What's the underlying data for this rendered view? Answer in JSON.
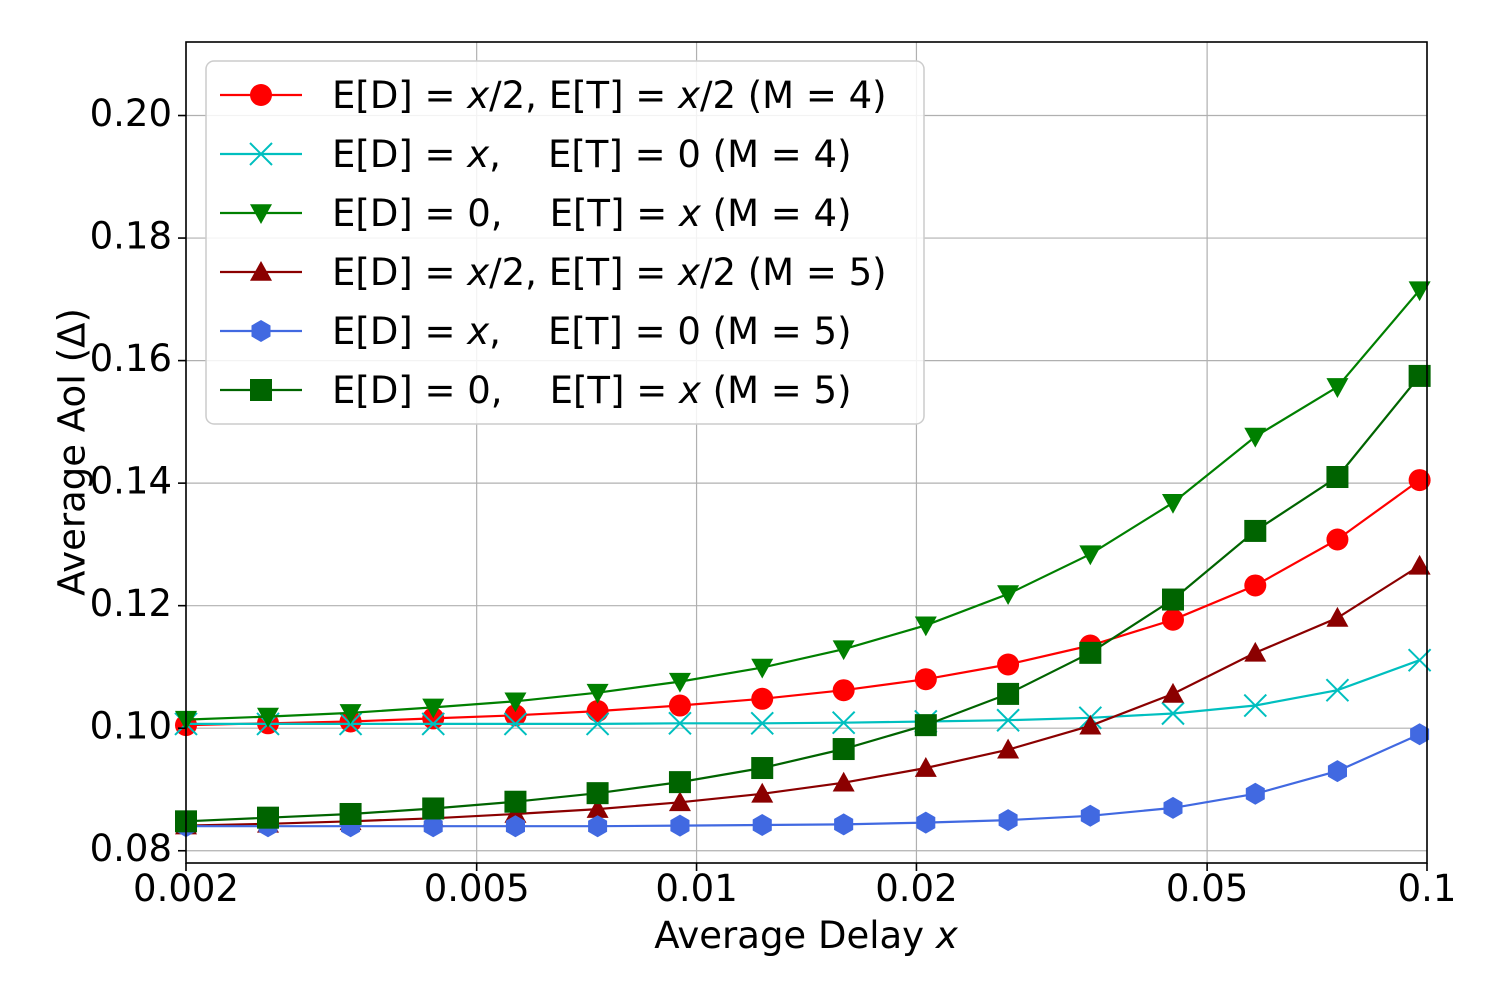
{
  "chart_data": {
    "type": "line",
    "title": "",
    "xlabel": "Average Delay",
    "xlabel_var": "x",
    "ylabel": "Average AoI (Δ)",
    "xscale": "log",
    "xlim": [
      0.002,
      0.1
    ],
    "ylim": [
      0.078,
      0.212
    ],
    "grid": true,
    "legend_position": "upper-left",
    "x_ticks": [
      0.002,
      0.005,
      0.01,
      0.02,
      0.05,
      0.1
    ],
    "x_tick_labels": [
      "0.002",
      "0.005",
      "0.01",
      "0.02",
      "0.05",
      "0.1"
    ],
    "y_ticks": [
      0.08,
      0.1,
      0.12,
      0.14,
      0.16,
      0.18,
      0.2
    ],
    "y_tick_labels": [
      "0.08",
      "0.10",
      "0.12",
      "0.14",
      "0.16",
      "0.18",
      "0.20"
    ],
    "x": [
      0.002,
      0.00259,
      0.00336,
      0.00436,
      0.00565,
      0.00732,
      0.00949,
      0.0123,
      0.0159,
      0.0206,
      0.0267,
      0.0346,
      0.0449,
      0.0582,
      0.0754,
      0.0977
    ],
    "series": [
      {
        "name": "E[D] = x/2, E[T] = x/2 (M = 4)",
        "color": "#ff0000",
        "marker": "circle",
        "values": [
          0.1005,
          0.1008,
          0.1011,
          0.1016,
          0.1021,
          0.1028,
          0.1037,
          0.1048,
          0.1062,
          0.108,
          0.1104,
          0.1135,
          0.1177,
          0.1233,
          0.1308,
          0.1405
        ]
      },
      {
        "name": "E[D] = x,    E[T] = 0 (M = 4)",
        "color": "#00bfbf",
        "marker": "x",
        "values": [
          0.1007,
          0.1007,
          0.1007,
          0.1007,
          0.1007,
          0.1007,
          0.1008,
          0.1008,
          0.1009,
          0.1011,
          0.1013,
          0.1017,
          0.1024,
          0.1037,
          0.1062,
          0.1111
        ]
      },
      {
        "name": "E[D] = 0,    E[T] = x (M = 4)",
        "color": "#008000",
        "marker": "triangle-down",
        "values": [
          0.1014,
          0.1019,
          0.1025,
          0.1034,
          0.1044,
          0.1058,
          0.1076,
          0.1099,
          0.1129,
          0.1168,
          0.1219,
          0.1284,
          0.1368,
          0.1476,
          0.1557,
          0.1715
        ]
      },
      {
        "name": "E[D] = x/2, E[T] = x/2 (M = 5)",
        "color": "#8b0000",
        "marker": "triangle-up",
        "values": [
          0.0841,
          0.0844,
          0.0848,
          0.0853,
          0.086,
          0.0868,
          0.0879,
          0.0893,
          0.0911,
          0.0935,
          0.0965,
          0.1004,
          0.1056,
          0.1123,
          0.118,
          0.1265
        ]
      },
      {
        "name": "E[D] = x,    E[T] = 0 (M = 5)",
        "color": "#4169e1",
        "marker": "hexagon",
        "values": [
          0.084,
          0.084,
          0.084,
          0.084,
          0.084,
          0.084,
          0.0841,
          0.0842,
          0.0843,
          0.0846,
          0.085,
          0.0857,
          0.087,
          0.0893,
          0.093,
          0.099
        ]
      },
      {
        "name": "E[D] = 0,    E[T] = x (M = 5)",
        "color": "#006400",
        "marker": "square",
        "values": [
          0.0848,
          0.0854,
          0.086,
          0.0869,
          0.088,
          0.0894,
          0.0912,
          0.0935,
          0.0966,
          0.1005,
          0.1056,
          0.1123,
          0.121,
          0.1322,
          0.141,
          0.1575
        ]
      }
    ]
  }
}
